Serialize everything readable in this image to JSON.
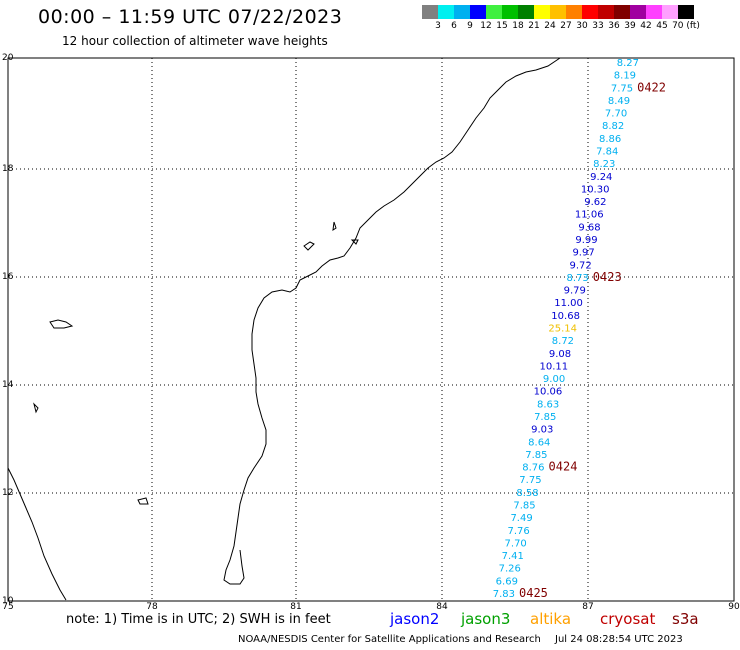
{
  "header": {
    "title": "00:00 – 11:59 UTC 07/22/2023",
    "subtitle": "12 hour collection of altimeter wave heights"
  },
  "legend": {
    "colors": [
      "#808080",
      "#00f0f0",
      "#00b0f0",
      "#0000ff",
      "#40f040",
      "#00c000",
      "#008000",
      "#ffff00",
      "#ffc000",
      "#ff8000",
      "#ff0000",
      "#c00000",
      "#800000",
      "#a000a0",
      "#ff40ff",
      "#ffa0ff",
      "#000000"
    ],
    "labels": [
      "3",
      "6",
      "9",
      "12",
      "15",
      "18",
      "21",
      "24",
      "27",
      "30",
      "33",
      "36",
      "39",
      "42",
      "45",
      "70 (ft)"
    ]
  },
  "axes": {
    "lat_labels": [
      "20",
      "18",
      "16",
      "14",
      "12",
      "10"
    ],
    "lon_labels": [
      "75",
      "78",
      "81",
      "84",
      "87",
      "90"
    ]
  },
  "track": {
    "swh": [
      {
        "v": "8.27",
        "c": "c"
      },
      {
        "v": "8.19",
        "c": "c"
      },
      {
        "v": "7.75",
        "c": "c"
      },
      {
        "v": "8.49",
        "c": "c"
      },
      {
        "v": "7.70",
        "c": "c"
      },
      {
        "v": "8.82",
        "c": "c"
      },
      {
        "v": "8.86",
        "c": "c"
      },
      {
        "v": "7.84",
        "c": "c"
      },
      {
        "v": "8.23",
        "c": "c"
      },
      {
        "v": "9.24",
        "c": "b"
      },
      {
        "v": "10.30",
        "c": "b"
      },
      {
        "v": "9.62",
        "c": "b"
      },
      {
        "v": "11.06",
        "c": "b"
      },
      {
        "v": "9.68",
        "c": "b"
      },
      {
        "v": "9.99",
        "c": "b"
      },
      {
        "v": "9.97",
        "c": "b"
      },
      {
        "v": "9.72",
        "c": "b"
      },
      {
        "v": "8.73",
        "c": "c"
      },
      {
        "v": "9.79",
        "c": "b"
      },
      {
        "v": "11.00",
        "c": "b"
      },
      {
        "v": "10.68",
        "c": "b"
      },
      {
        "v": "25.14",
        "c": "y"
      },
      {
        "v": "8.72",
        "c": "c"
      },
      {
        "v": "9.08",
        "c": "b"
      },
      {
        "v": "10.11",
        "c": "b"
      },
      {
        "v": "9.00",
        "c": "c"
      },
      {
        "v": "10.06",
        "c": "b"
      },
      {
        "v": "8.63",
        "c": "c"
      },
      {
        "v": "7.85",
        "c": "c"
      },
      {
        "v": "9.03",
        "c": "b"
      },
      {
        "v": "8.64",
        "c": "c"
      },
      {
        "v": "7.85",
        "c": "c"
      },
      {
        "v": "8.76",
        "c": "c"
      },
      {
        "v": "7.75",
        "c": "c"
      },
      {
        "v": "8.58",
        "c": "c"
      },
      {
        "v": "7.85",
        "c": "c"
      },
      {
        "v": "7.49",
        "c": "c"
      },
      {
        "v": "7.76",
        "c": "c"
      },
      {
        "v": "7.70",
        "c": "c"
      },
      {
        "v": "7.41",
        "c": "c"
      },
      {
        "v": "7.26",
        "c": "c"
      },
      {
        "v": "6.69",
        "c": "c"
      },
      {
        "v": "7.83",
        "c": "c"
      }
    ],
    "pass_labels": [
      "0422",
      "0423",
      "0424",
      "0425"
    ]
  },
  "footer": {
    "note": "note: 1) Time is in UTC; 2) SWH is in feet",
    "satellites": [
      {
        "name": "jason2",
        "color": "#0000ff"
      },
      {
        "name": "jason3",
        "color": "#00a000"
      },
      {
        "name": "altika",
        "color": "#ffa000"
      },
      {
        "name": "cryosat",
        "color": "#c00000"
      },
      {
        "name": "s3a",
        "color": "#800000"
      }
    ],
    "credit": "NOAA/NESDIS Center for Satellite Applications and Research",
    "timestamp": "Jul 24 08:28:54 UTC 2023"
  }
}
